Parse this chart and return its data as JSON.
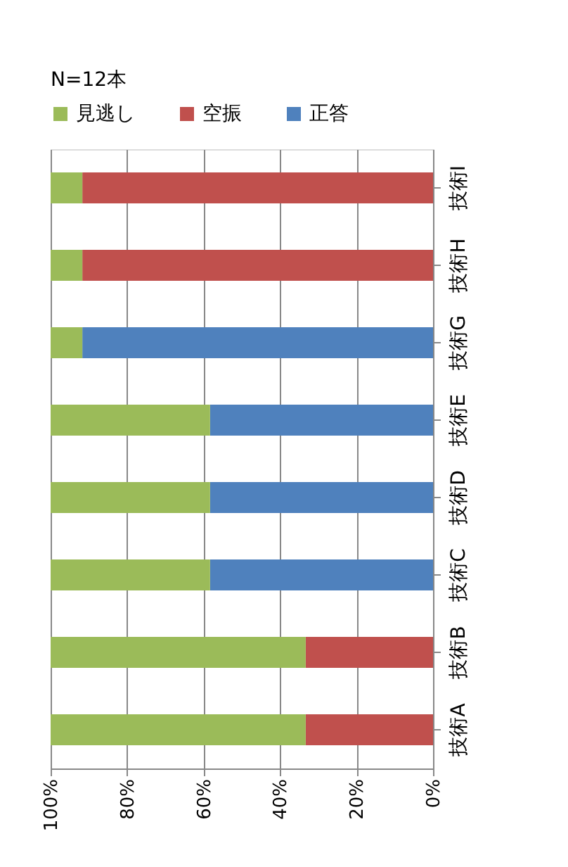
{
  "chart_data": {
    "type": "bar",
    "orientation": "horizontal",
    "stacked": true,
    "categories": [
      "技術I",
      "技術H",
      "技術G",
      "技術E",
      "技術D",
      "技術C",
      "技術B",
      "技術A"
    ],
    "series": [
      {
        "name": "正答",
        "color": "#4f81bd",
        "values": [
          null,
          null,
          91.7,
          58.3,
          58.3,
          58.3,
          null,
          null
        ]
      },
      {
        "name": "空振",
        "color": "#c0504d",
        "values": [
          91.7,
          91.7,
          null,
          null,
          null,
          null,
          33.3,
          33.3
        ]
      },
      {
        "name": "見逃し",
        "color": "#9bbb59",
        "values": [
          8.3,
          8.3,
          8.3,
          41.7,
          41.7,
          41.7,
          66.7,
          66.7
        ]
      }
    ],
    "xlim": [
      100,
      0
    ],
    "xticks": [
      {
        "value": 100,
        "label": "100%"
      },
      {
        "value": 80,
        "label": "80%"
      },
      {
        "value": 60,
        "label": "60%"
      },
      {
        "value": 40,
        "label": "40%"
      },
      {
        "value": 20,
        "label": "20%"
      },
      {
        "value": 0,
        "label": "0%"
      }
    ],
    "grid": "x",
    "legend": "top",
    "annotations": [
      "N=12本"
    ]
  }
}
